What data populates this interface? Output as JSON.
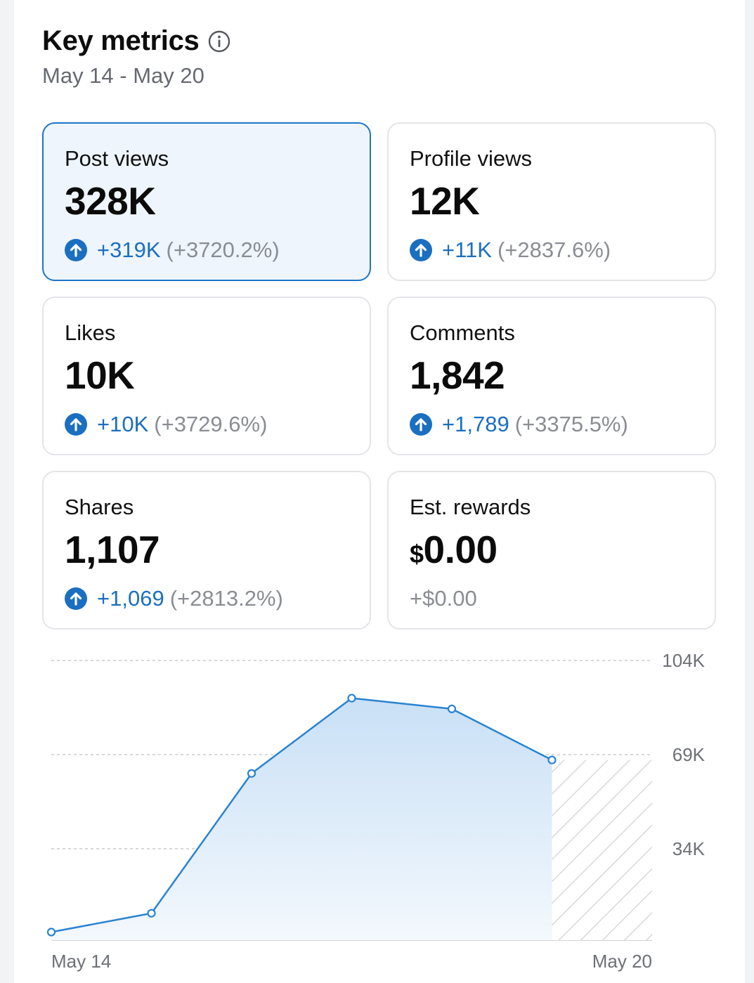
{
  "header": {
    "title": "Key metrics",
    "date_range": "May 14 - May 20"
  },
  "metrics": [
    {
      "label": "Post views",
      "value": "328K",
      "delta": "+319K",
      "pct": "(+3720.2%)",
      "selected": true
    },
    {
      "label": "Profile views",
      "value": "12K",
      "delta": "+11K",
      "pct": "(+2837.6%)"
    },
    {
      "label": "Likes",
      "value": "10K",
      "delta": "+10K",
      "pct": "(+3729.6%)"
    },
    {
      "label": "Comments",
      "value": "1,842",
      "delta": "+1,789",
      "pct": "(+3375.5%)"
    },
    {
      "label": "Shares",
      "value": "1,107",
      "delta": "+1,069",
      "pct": "(+2813.2%)"
    },
    {
      "label": "Est. rewards",
      "currency": "$",
      "value": "0.00",
      "delta": "+$0.00"
    }
  ],
  "colors": {
    "accent": "#1b6fc0",
    "line": "#2a83cf",
    "selected_bg": "#eef5fd",
    "muted": "#8a8d92"
  },
  "chart_data": {
    "type": "area",
    "title": "Post views",
    "x": [
      "May 14",
      "May 15",
      "May 16",
      "May 17",
      "May 18",
      "May 19",
      "May 20"
    ],
    "values": [
      3000,
      10000,
      62000,
      90000,
      86000,
      67000,
      null
    ],
    "y_ticks": [
      34000,
      69000,
      104000
    ],
    "y_tick_labels": [
      "34K",
      "69K",
      "104K"
    ],
    "ylim": [
      0,
      104000
    ],
    "x_tick_labels": [
      "May 14",
      "May 20"
    ],
    "grid": "dashed",
    "incomplete_last_period": true
  }
}
